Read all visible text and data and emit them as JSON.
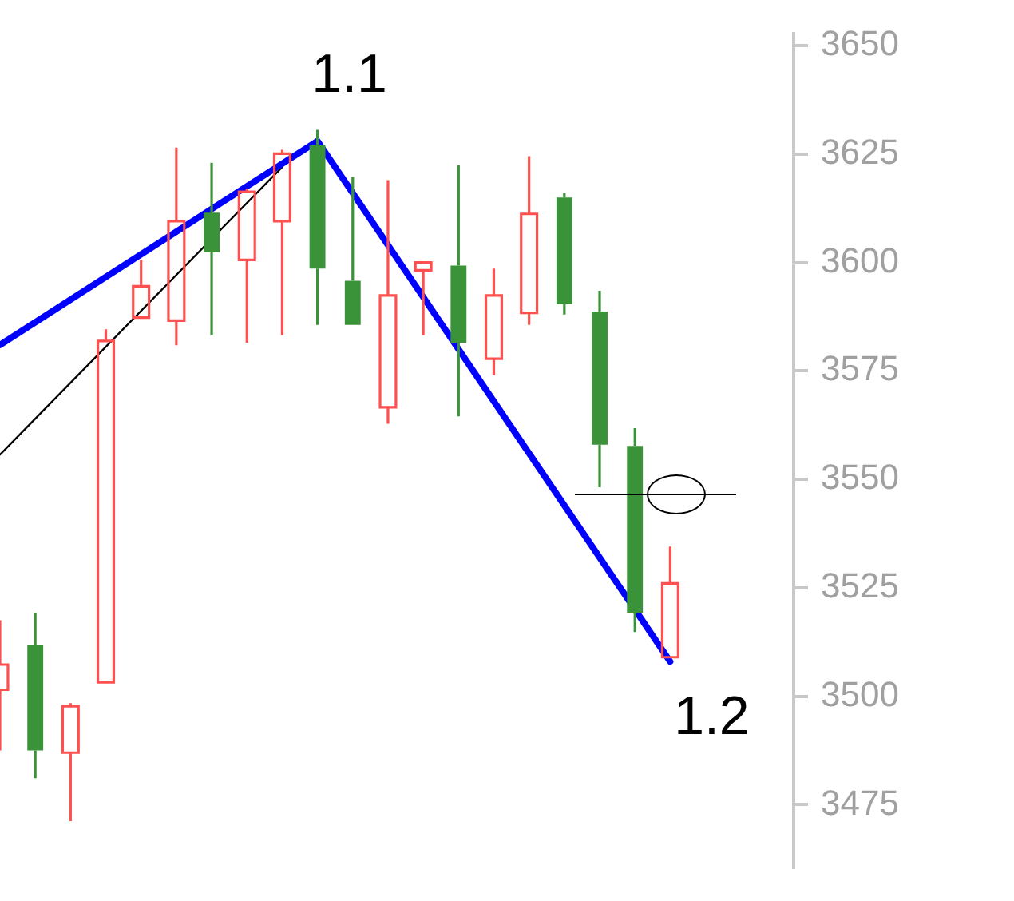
{
  "chart_data": {
    "type": "candlestick",
    "categories": [
      null,
      null,
      null,
      null,
      null,
      null,
      null,
      null,
      null,
      null,
      null,
      null,
      null,
      null,
      null,
      null,
      null,
      null,
      null,
      null
    ],
    "ohlc": [
      [
        3501.5,
        3517.5,
        3487.5,
        3507.3
      ],
      [
        3511.7,
        3519.2,
        3481.1,
        3487.5
      ],
      [
        3487,
        3498.4,
        3471.2,
        3497.7
      ],
      [
        3503.2,
        3584.6,
        3503.2,
        3581.9
      ],
      [
        3587.3,
        3600.6,
        3587.3,
        3594.5
      ],
      [
        3586.6,
        3626.5,
        3580.9,
        3609.5
      ],
      [
        3611.5,
        3623,
        3583.2,
        3602.3
      ],
      [
        3600.6,
        3617,
        3581.5,
        3616.3
      ],
      [
        3609.5,
        3626,
        3583.2,
        3625.1
      ],
      [
        3627.2,
        3630.6,
        3585.6,
        3598.6
      ],
      [
        3595.8,
        3619.7,
        3585.6,
        3585.6
      ],
      [
        3566.6,
        3619,
        3562.8,
        3592.4
      ],
      [
        3598.2,
        3600,
        3583.2,
        3600
      ],
      [
        3599.3,
        3622.4,
        3564.5,
        3581.5
      ],
      [
        3577.8,
        3598.6,
        3574,
        3592.4
      ],
      [
        3588.4,
        3624.5,
        3585.6,
        3611.2
      ],
      [
        3615,
        3616,
        3588,
        3590.4
      ],
      [
        3588.7,
        3593.5,
        3548.2,
        3558
      ],
      [
        3557.7,
        3561.8,
        3514.8,
        3519.2
      ],
      [
        3509,
        3534.5,
        3509,
        3526
      ]
    ],
    "colors": [
      "#ff5050",
      "#3a9339",
      "#ff5050",
      "#ff5050",
      "#ff5050",
      "#ff5050",
      "#3a9339",
      "#ff5050",
      "#ff5050",
      "#3a9339",
      "#3a9339",
      "#ff5050",
      "#ff5050",
      "#3a9339",
      "#ff5050",
      "#ff5050",
      "#3a9339",
      "#3a9339",
      "#3a9339",
      "#ff5050"
    ],
    "series": [
      {
        "type": "line",
        "values": [
          3581,
          null,
          null,
          null,
          null,
          null,
          null,
          null,
          null,
          3628,
          null,
          null,
          null,
          null,
          null,
          null,
          null,
          null,
          null,
          3508
        ],
        "color": "#0000ff"
      },
      {
        "type": "line",
        "values": [
          3555.7,
          null,
          null,
          null,
          null,
          null,
          null,
          null,
          3622,
          null,
          null,
          null,
          null,
          null,
          null,
          null,
          null,
          null,
          null,
          null
        ],
        "color": "#000000"
      }
    ],
    "ylim": [
      3460.6,
      3652.7
    ],
    "yticks": [
      3475,
      3500,
      3525,
      3550,
      3575,
      3600,
      3625,
      3650
    ],
    "tick_labels": "y",
    "grid": false,
    "legend": false,
    "annotations": [
      "1.1",
      "1.2"
    ]
  }
}
